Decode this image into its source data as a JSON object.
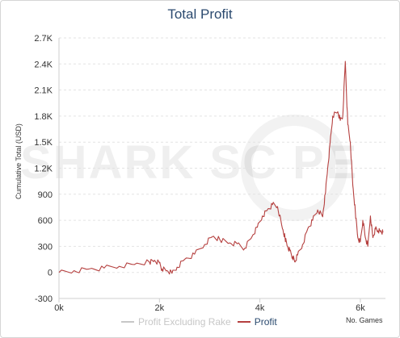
{
  "chart_data": {
    "type": "line",
    "title": "Total Profit",
    "xlabel": "No. Games",
    "ylabel": "Cumulative Total (USD)",
    "xlim": [
      0,
      6500
    ],
    "ylim": [
      -300,
      2700
    ],
    "x_ticks": [
      "0k",
      "2k",
      "4k",
      "6k"
    ],
    "x_tick_values": [
      0,
      2000,
      4000,
      6000
    ],
    "y_ticks": [
      "-300",
      "0",
      "300",
      "600",
      "900",
      "1.2K",
      "1.5K",
      "1.8K",
      "2.1K",
      "2.4K",
      "2.7K"
    ],
    "y_tick_values": [
      -300,
      0,
      300,
      600,
      900,
      1200,
      1500,
      1800,
      2100,
      2400,
      2700
    ],
    "grid": true,
    "legend_position": "bottom",
    "series": [
      {
        "name": "Profit Excluding Rake",
        "color": "#c7c7c7",
        "x": [],
        "y": []
      },
      {
        "name": "Profit",
        "color": "#b5403f",
        "x": [
          0,
          300,
          600,
          900,
          1200,
          1500,
          1800,
          1900,
          2000,
          2050,
          2150,
          2250,
          2350,
          2500,
          2700,
          2900,
          3050,
          3200,
          3400,
          3550,
          3700,
          3850,
          3950,
          4050,
          4150,
          4250,
          4350,
          4450,
          4500,
          4550,
          4600,
          4650,
          4700,
          4750,
          4850,
          4950,
          5050,
          5150,
          5250,
          5300,
          5350,
          5400,
          5450,
          5550,
          5600,
          5650,
          5700,
          5750,
          5800,
          5850,
          5900,
          5950,
          6000,
          6050,
          6100,
          6150,
          6200,
          6250,
          6300,
          6350,
          6400,
          6450
        ],
        "y": [
          0,
          20,
          40,
          50,
          70,
          90,
          120,
          140,
          110,
          40,
          20,
          -10,
          60,
          150,
          210,
          320,
          410,
          380,
          340,
          330,
          280,
          420,
          520,
          650,
          720,
          780,
          760,
          500,
          400,
          300,
          250,
          180,
          120,
          200,
          320,
          500,
          600,
          720,
          640,
          900,
          1200,
          1500,
          1800,
          1850,
          1750,
          1800,
          2430,
          1700,
          1500,
          1000,
          700,
          400,
          350,
          600,
          400,
          300,
          650,
          400,
          500,
          480,
          470,
          460
        ]
      }
    ]
  },
  "legend": {
    "items": [
      {
        "label": "Profit Excluding Rake",
        "color": "#c7c7c7"
      },
      {
        "label": "Profit",
        "color": "#b5403f"
      }
    ]
  },
  "watermark": {
    "text": "SHARK SC PE"
  }
}
